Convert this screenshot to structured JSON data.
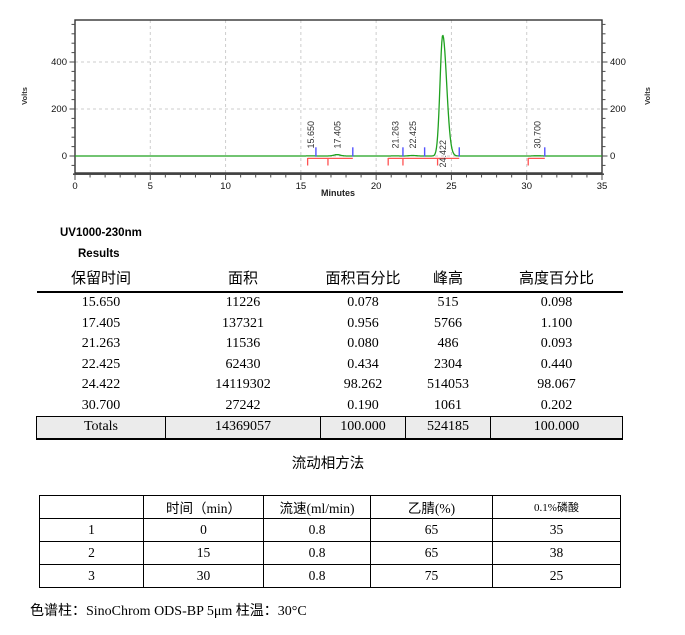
{
  "report": {
    "detector": "UV1000-230nm",
    "results_label": "Results",
    "column_note": "色谱柱：SinoChrom ODS-BP 5μm 柱温：30°C"
  },
  "chart_data": {
    "type": "line",
    "title": "",
    "xlabel": "Minutes",
    "ylabel_left": "Volts",
    "ylabel_right": "Volts",
    "x_ticks": [
      0,
      5,
      10,
      15,
      20,
      25,
      30,
      35
    ],
    "y_ticks": [
      0,
      200,
      400
    ],
    "xlim": [
      0,
      35
    ],
    "ylim": [
      -72,
      578
    ],
    "grid": true,
    "trace_color": "#1fa11f",
    "peak_marker_color": "#5353ff",
    "baseline_marker_color": "#ff5252",
    "grid_color": "#cdcdcd",
    "axis_color": "#3a3a3a",
    "peaks": [
      {
        "retention_min": 15.65,
        "label": "15.650",
        "height_volts": 0.52
      },
      {
        "retention_min": 17.405,
        "label": "17.405",
        "height_volts": 5.77
      },
      {
        "retention_min": 21.263,
        "label": "21.263",
        "height_volts": 0.49
      },
      {
        "retention_min": 22.425,
        "label": "22.425",
        "height_volts": 2.3
      },
      {
        "retention_min": 24.422,
        "label": "24.422",
        "height_volts": 514.05
      },
      {
        "retention_min": 30.7,
        "label": "30.700",
        "height_volts": 1.06
      }
    ],
    "peak_start_end_marks_min": [
      16.0,
      18.45,
      21.78,
      23.22,
      25.52,
      31.2
    ],
    "baseline_segments_min": [
      [
        15.45,
        18.45
      ],
      [
        20.8,
        25.52
      ],
      [
        30.1,
        31.2
      ]
    ],
    "baseline_tick_marks_min": [
      15.45,
      16.8,
      20.8,
      21.78,
      24.08,
      30.1
    ]
  },
  "results_table": {
    "headers": [
      "保留时间",
      "面积",
      "面积百分比",
      "峰高",
      "高度百分比"
    ],
    "rows": [
      [
        "15.650",
        "11226",
        "0.078",
        "515",
        "0.098"
      ],
      [
        "17.405",
        "137321",
        "0.956",
        "5766",
        "1.100"
      ],
      [
        "21.263",
        "11536",
        "0.080",
        "486",
        "0.093"
      ],
      [
        "22.425",
        "62430",
        "0.434",
        "2304",
        "0.440"
      ],
      [
        "24.422",
        "14119302",
        "98.262",
        "514053",
        "98.067"
      ],
      [
        "30.700",
        "27242",
        "0.190",
        "1061",
        "0.202"
      ]
    ],
    "totals_row": [
      "Totals",
      "14369057",
      "100.000",
      "524185",
      "100.000"
    ]
  },
  "mobile_phase": {
    "title": "流动相方法",
    "headers": [
      "",
      "时间（min）",
      "流速(ml/min)",
      "乙腈(%)",
      "0.1%磷酸"
    ],
    "rows": [
      [
        "1",
        "0",
        "0.8",
        "65",
        "35"
      ],
      [
        "2",
        "15",
        "0.8",
        "65",
        "38"
      ],
      [
        "3",
        "30",
        "0.8",
        "75",
        "25"
      ]
    ]
  }
}
